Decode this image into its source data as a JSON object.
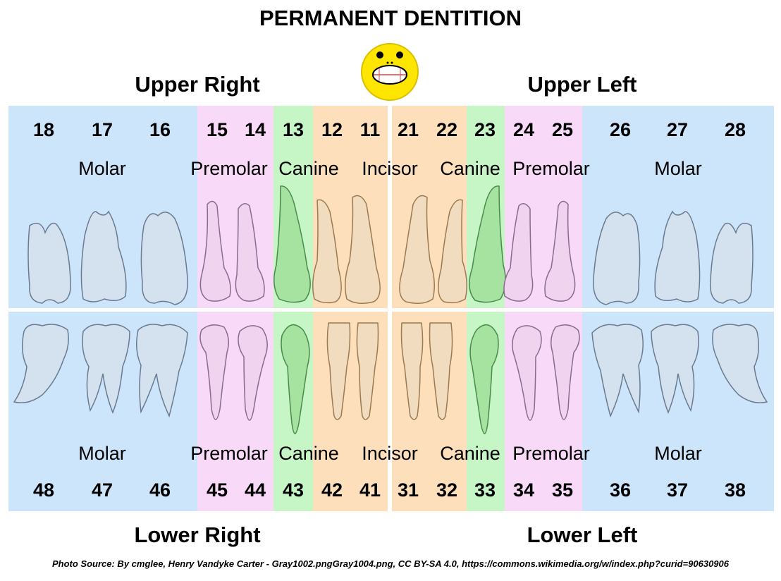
{
  "title": "PERMANENT DENTITION",
  "quadrants": {
    "upper_right": "Upper Right",
    "upper_left": "Upper Left",
    "lower_right": "Lower Right",
    "lower_left": "Lower Left"
  },
  "colors": {
    "molar": "#cce5fa",
    "premolar": "#f8d9f8",
    "canine": "#c6f5c6",
    "incisor": "#fde0bb",
    "molar_tooth": "#d4e1ee",
    "premolar_tooth": "#efd3ef",
    "canine_tooth": "#a6e3a0",
    "incisor_tooth": "#f1dcc0"
  },
  "upper_numbers": [
    "18",
    "17",
    "16",
    "15",
    "14",
    "13",
    "12",
    "11",
    "21",
    "22",
    "23",
    "24",
    "25",
    "26",
    "27",
    "28"
  ],
  "lower_numbers": [
    "48",
    "47",
    "46",
    "45",
    "44",
    "43",
    "42",
    "41",
    "31",
    "32",
    "33",
    "34",
    "35",
    "36",
    "37",
    "38"
  ],
  "upper_types": [
    "Molar",
    "Premolar",
    "Canine",
    "Incisor",
    "Canine",
    "Premolar",
    "Molar"
  ],
  "lower_types": [
    "Molar",
    "Premolar",
    "Canine",
    "Incisor",
    "Canine",
    "Premolar",
    "Molar"
  ],
  "source": "Photo Source: By cmglee, Henry Vandyke Carter - Gray1002.pngGray1004.png, CC BY-SA 4.0, https://commons.wikimedia.org/w/index.php?curid=90630906"
}
